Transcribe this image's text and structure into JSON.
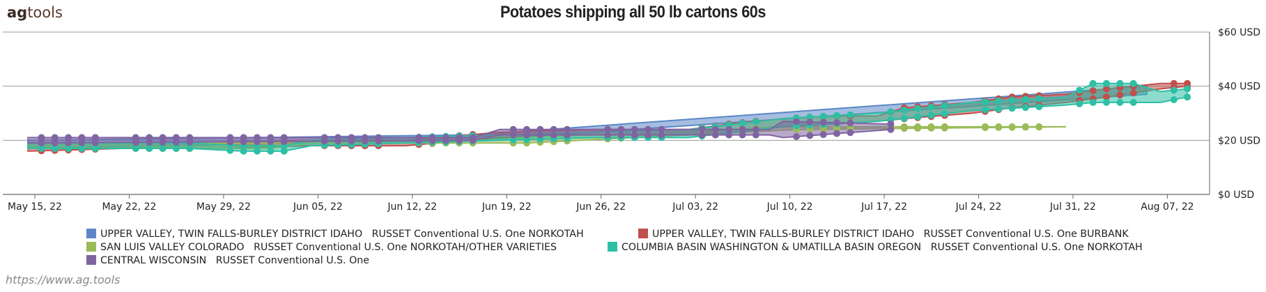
{
  "brand": {
    "prefix": "ag",
    "suffix": "tools"
  },
  "footer": "https://www.ag.tools",
  "colors": {
    "upper_norkotah": "#5b87c7",
    "upper_burbank": "#c0504d",
    "san_luis": "#9bbb59",
    "columbia": "#2ebfa5",
    "central_wi": "#8064a2"
  },
  "chart_data": {
    "type": "area",
    "title": "Potatoes shipping all 50 lb cartons 60s",
    "xlabel": "",
    "ylabel": "",
    "x_ticks": [
      "May 15, 22",
      "May 22, 22",
      "May 29, 22",
      "Jun 05, 22",
      "Jun 12, 22",
      "Jun 19, 22",
      "Jun 26, 22",
      "Jul 03, 22",
      "Jul 10, 22",
      "Jul 17, 22",
      "Jul 24, 22",
      "Jul 31, 22",
      "Aug 07, 22"
    ],
    "y_ticks": [
      "$0 USD",
      "$20 USD",
      "$40 USD",
      "$60 USD"
    ],
    "ylim": [
      0,
      60
    ],
    "xlim": [
      "2022-05-15",
      "2022-08-09"
    ],
    "grid": "horizontal",
    "legend_position": "bottom",
    "series": [
      {
        "name": "UPPER VALLEY, TWIN FALLS-BURLEY DISTRICT IDAHO   RUSSET Conventional U.S. One NORKOTAH",
        "color": "#5b87c7",
        "points": [
          {
            "date": "2022-05-15",
            "low": 17,
            "high": 20
          },
          {
            "date": "2022-06-17",
            "low": 20,
            "high": 22
          },
          {
            "date": "2022-08-06",
            "low": 37,
            "high": 40
          }
        ]
      },
      {
        "name": "UPPER VALLEY, TWIN FALLS-BURLEY DISTRICT IDAHO   RUSSET Conventional U.S. One BURBANK",
        "color": "#c0504d",
        "points": [
          {
            "date": "2022-05-15",
            "low": 16,
            "high": 19
          },
          {
            "date": "2022-05-22",
            "low": 17,
            "high": 19
          },
          {
            "date": "2022-05-29",
            "low": 17,
            "high": 19
          },
          {
            "date": "2022-06-05",
            "low": 18,
            "high": 20
          },
          {
            "date": "2022-06-12",
            "low": 18,
            "high": 20
          },
          {
            "date": "2022-06-19",
            "low": 21,
            "high": 23
          },
          {
            "date": "2022-06-26",
            "low": 22,
            "high": 24
          },
          {
            "date": "2022-07-03",
            "low": 22,
            "high": 24
          },
          {
            "date": "2022-07-06",
            "low": 24,
            "high": 26
          },
          {
            "date": "2022-07-10",
            "low": 25,
            "high": 28
          },
          {
            "date": "2022-07-14",
            "low": 26,
            "high": 29
          },
          {
            "date": "2022-07-17",
            "low": 27,
            "high": 29
          },
          {
            "date": "2022-07-19",
            "low": 28,
            "high": 32
          },
          {
            "date": "2022-07-24",
            "low": 30,
            "high": 34
          },
          {
            "date": "2022-07-27",
            "low": 32,
            "high": 36
          },
          {
            "date": "2022-07-31",
            "low": 34,
            "high": 37
          },
          {
            "date": "2022-08-03",
            "low": 36,
            "high": 39
          },
          {
            "date": "2022-08-07",
            "low": 39,
            "high": 41
          },
          {
            "date": "2022-08-09",
            "low": 40,
            "high": 41
          }
        ]
      },
      {
        "name": "SAN LUIS VALLEY COLORADO   RUSSET Conventional U.S. One NORKOTAH/OTHER VARIETIES",
        "color": "#9bbb59",
        "points": [
          {
            "date": "2022-05-15",
            "low": 17,
            "high": 19
          },
          {
            "date": "2022-06-02",
            "low": 17,
            "high": 19
          },
          {
            "date": "2022-06-05",
            "low": 19,
            "high": 20
          },
          {
            "date": "2022-06-18",
            "low": 19,
            "high": 20
          },
          {
            "date": "2022-06-21",
            "low": 19,
            "high": 21
          },
          {
            "date": "2022-07-11",
            "low": 24,
            "high": 25
          },
          {
            "date": "2022-07-31",
            "low": 25,
            "high": 25
          }
        ]
      },
      {
        "name": "COLUMBIA BASIN WASHINGTON & UMATILLA BASIN OREGON   RUSSET Conventional U.S. One NORKOTAH",
        "color": "#2ebfa5",
        "points": [
          {
            "date": "2022-05-15",
            "low": 17,
            "high": 19
          },
          {
            "date": "2022-05-27",
            "low": 17,
            "high": 19
          },
          {
            "date": "2022-05-31",
            "low": 16,
            "high": 18
          },
          {
            "date": "2022-06-03",
            "low": 16,
            "high": 18
          },
          {
            "date": "2022-06-05",
            "low": 18,
            "high": 20
          },
          {
            "date": "2022-06-26",
            "low": 21,
            "high": 23
          },
          {
            "date": "2022-07-03",
            "low": 21,
            "high": 24
          },
          {
            "date": "2022-07-10",
            "low": 25,
            "high": 28
          },
          {
            "date": "2022-07-17",
            "low": 27,
            "high": 30
          },
          {
            "date": "2022-07-24",
            "low": 31,
            "high": 34
          },
          {
            "date": "2022-07-31",
            "low": 33,
            "high": 36
          },
          {
            "date": "2022-08-02",
            "low": 34,
            "high": 41
          },
          {
            "date": "2022-08-05",
            "low": 34,
            "high": 41
          },
          {
            "date": "2022-08-07",
            "low": 34,
            "high": 38
          },
          {
            "date": "2022-08-09",
            "low": 36,
            "high": 39
          }
        ]
      },
      {
        "name": "CENTRAL WISCONSIN   RUSSET Conventional U.S. One",
        "color": "#8064a2",
        "points": [
          {
            "date": "2022-05-15",
            "low": 19,
            "high": 21
          },
          {
            "date": "2022-06-17",
            "low": 20,
            "high": 21
          },
          {
            "date": "2022-06-19",
            "low": 22,
            "high": 24
          },
          {
            "date": "2022-07-09",
            "low": 22,
            "high": 24
          },
          {
            "date": "2022-07-10",
            "low": 21,
            "high": 27
          },
          {
            "date": "2022-07-18",
            "low": 24,
            "high": 26
          }
        ]
      }
    ]
  }
}
